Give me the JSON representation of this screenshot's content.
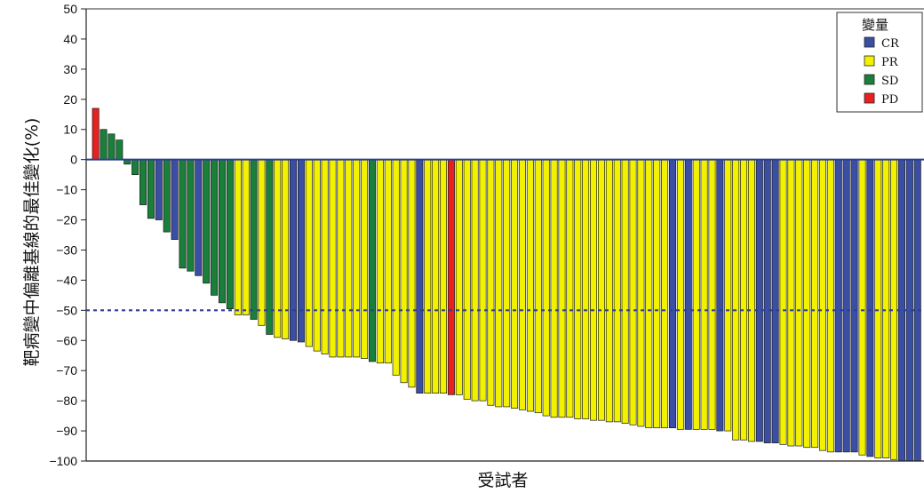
{
  "chart_data": {
    "type": "bar",
    "title": "",
    "xlabel": "受試者",
    "ylabel": "靶病變中偏離基線的最佳變化(%)",
    "ylim": [
      -100,
      50
    ],
    "yticks": [
      50,
      40,
      30,
      20,
      10,
      0,
      -10,
      -20,
      -30,
      -40,
      -50,
      -60,
      -70,
      -80,
      -90,
      -100
    ],
    "ytick_labels": [
      "50",
      "40",
      "30",
      "20",
      "10",
      "0",
      "−10",
      "−20",
      "−30",
      "−40",
      "−50",
      "−60",
      "−70",
      "−80",
      "−90",
      "−100"
    ],
    "reference_line": -50,
    "grid": false,
    "legend": {
      "title": "變量",
      "placement": "top-right",
      "items": [
        {
          "name": "CR",
          "color": "#3a4fa3"
        },
        {
          "name": "PR",
          "color": "#f2f200"
        },
        {
          "name": "SD",
          "color": "#1a7f3a"
        },
        {
          "name": "PD",
          "color": "#e82020"
        }
      ]
    },
    "colors": {
      "CR": "#3a4fa3",
      "PR": "#f2f200",
      "SD": "#1a7f3a",
      "PD": "#e82020",
      "axis": "#2d3f94",
      "edge": "#1a1a1a"
    },
    "values": [
      17,
      10,
      8.5,
      6.5,
      -1.5,
      -5,
      -15,
      -19.5,
      -20,
      -24,
      -26.5,
      -36,
      -37,
      -38.5,
      -41,
      -45,
      -47.5,
      -49.5,
      -51.5,
      -51.5,
      -53,
      -55,
      -58,
      -59,
      -59.5,
      -60,
      -60.5,
      -62,
      -63.5,
      -64.5,
      -65.5,
      -65.5,
      -65.5,
      -65.5,
      -66,
      -67,
      -67.5,
      -67.5,
      -71.5,
      -74,
      -75.5,
      -77.5,
      -77.5,
      -77.5,
      -77.5,
      -78,
      -78,
      -79.5,
      -80,
      -80,
      -81.5,
      -82,
      -82,
      -82.5,
      -83,
      -83.5,
      -84,
      -85,
      -85.5,
      -85.5,
      -85.5,
      -86,
      -86,
      -86.5,
      -86.5,
      -87,
      -87,
      -87.5,
      -88,
      -88.5,
      -89,
      -89,
      -89,
      -89,
      -89.5,
      -89.5,
      -89.5,
      -89.5,
      -89.5,
      -90,
      -90,
      -93,
      -93,
      -93.5,
      -93.5,
      -94,
      -94,
      -94.5,
      -95,
      -95,
      -95.5,
      -95.5,
      -96.5,
      -97,
      -97,
      -97,
      -97,
      -98,
      -98.5,
      -99,
      -99,
      -99.5,
      -100,
      -100,
      -100
    ],
    "categories": [
      "PD",
      "SD",
      "SD",
      "SD",
      "SD",
      "SD",
      "SD",
      "SD",
      "CR",
      "SD",
      "CR",
      "SD",
      "SD",
      "CR",
      "SD",
      "SD",
      "SD",
      "SD",
      "PR",
      "PR",
      "SD",
      "PR",
      "SD",
      "PR",
      "PR",
      "CR",
      "CR",
      "PR",
      "PR",
      "PR",
      "PR",
      "PR",
      "PR",
      "PR",
      "PR",
      "SD",
      "PR",
      "PR",
      "PR",
      "PR",
      "PR",
      "CR",
      "PR",
      "PR",
      "PR",
      "PD",
      "PR",
      "PR",
      "PR",
      "PR",
      "PR",
      "PR",
      "PR",
      "PR",
      "PR",
      "PR",
      "PR",
      "PR",
      "PR",
      "PR",
      "PR",
      "PR",
      "PR",
      "PR",
      "PR",
      "PR",
      "PR",
      "PR",
      "PR",
      "PR",
      "PR",
      "PR",
      "PR",
      "CR",
      "PR",
      "CR",
      "PR",
      "PR",
      "PR",
      "CR",
      "PR",
      "PR",
      "PR",
      "PR",
      "CR",
      "CR",
      "CR",
      "PR",
      "PR",
      "PR",
      "PR",
      "PR",
      "PR",
      "PR",
      "CR",
      "CR",
      "CR",
      "PR",
      "CR",
      "PR",
      "PR",
      "PR",
      "CR",
      "CR",
      "CR"
    ]
  }
}
